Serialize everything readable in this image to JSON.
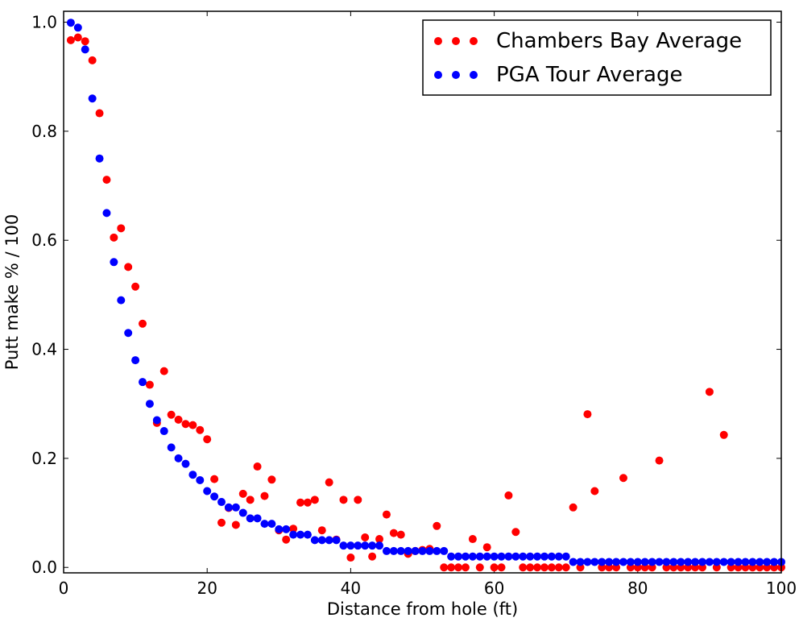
{
  "chart_data": {
    "type": "scatter",
    "xlabel": "Distance from hole (ft)",
    "ylabel": "Putt make % / 100",
    "xlim": [
      0,
      100
    ],
    "ylim": [
      -0.01,
      1.02
    ],
    "xticks": [
      0,
      20,
      40,
      60,
      80,
      100
    ],
    "xtick_labels": [
      "0",
      "20",
      "40",
      "60",
      "80",
      "100"
    ],
    "yticks": [
      0.0,
      0.2,
      0.4,
      0.6,
      0.8,
      1.0
    ],
    "ytick_labels": [
      "0.0",
      "0.2",
      "0.4",
      "0.6",
      "0.8",
      "1.0"
    ],
    "grid": false,
    "legend_position": "top-right",
    "series": [
      {
        "name": "Chambers Bay Average",
        "color": "#ff0000",
        "points": [
          [
            1,
            0.967
          ],
          [
            2,
            0.972
          ],
          [
            3,
            0.965
          ],
          [
            4,
            0.93
          ],
          [
            5,
            0.833
          ],
          [
            6,
            0.711
          ],
          [
            7,
            0.605
          ],
          [
            8,
            0.622
          ],
          [
            9,
            0.551
          ],
          [
            10,
            0.515
          ],
          [
            11,
            0.447
          ],
          [
            12,
            0.335
          ],
          [
            13,
            0.265
          ],
          [
            14,
            0.36
          ],
          [
            15,
            0.28
          ],
          [
            16,
            0.271
          ],
          [
            17,
            0.263
          ],
          [
            18,
            0.261
          ],
          [
            19,
            0.252
          ],
          [
            20,
            0.235
          ],
          [
            21,
            0.162
          ],
          [
            22,
            0.082
          ],
          [
            23,
            0.109
          ],
          [
            24,
            0.078
          ],
          [
            25,
            0.135
          ],
          [
            26,
            0.124
          ],
          [
            27,
            0.185
          ],
          [
            28,
            0.131
          ],
          [
            29,
            0.161
          ],
          [
            30,
            0.068
          ],
          [
            31,
            0.051
          ],
          [
            32,
            0.071
          ],
          [
            33,
            0.119
          ],
          [
            34,
            0.119
          ],
          [
            35,
            0.124
          ],
          [
            36,
            0.068
          ],
          [
            37,
            0.156
          ],
          [
            38,
            0.051
          ],
          [
            39,
            0.124
          ],
          [
            40,
            0.018
          ],
          [
            41,
            0.124
          ],
          [
            42,
            0.055
          ],
          [
            43,
            0.02
          ],
          [
            44,
            0.052
          ],
          [
            45,
            0.097
          ],
          [
            46,
            0.063
          ],
          [
            47,
            0.06
          ],
          [
            48,
            0.025
          ],
          [
            49,
            0.03
          ],
          [
            50,
            0.032
          ],
          [
            51,
            0.034
          ],
          [
            52,
            0.076
          ],
          [
            53,
            0.0
          ],
          [
            54,
            0.0
          ],
          [
            55,
            0.0
          ],
          [
            56,
            0.0
          ],
          [
            57,
            0.052
          ],
          [
            58,
            0.0
          ],
          [
            59,
            0.037
          ],
          [
            60,
            0.0
          ],
          [
            61,
            0.0
          ],
          [
            62,
            0.132
          ],
          [
            63,
            0.065
          ],
          [
            64,
            0.0
          ],
          [
            65,
            0.0
          ],
          [
            66,
            0.0
          ],
          [
            67,
            0.0
          ],
          [
            68,
            0.0
          ],
          [
            69,
            0.0
          ],
          [
            70,
            0.0
          ],
          [
            71,
            0.11
          ],
          [
            72,
            0.0
          ],
          [
            73,
            0.281
          ],
          [
            74,
            0.14
          ],
          [
            75,
            0.0
          ],
          [
            76,
            0.0
          ],
          [
            77,
            0.0
          ],
          [
            78,
            0.164
          ],
          [
            79,
            0.0
          ],
          [
            80,
            0.0
          ],
          [
            81,
            0.0
          ],
          [
            82,
            0.0
          ],
          [
            83,
            0.196
          ],
          [
            84,
            0.0
          ],
          [
            85,
            0.0
          ],
          [
            86,
            0.0
          ],
          [
            87,
            0.0
          ],
          [
            88,
            0.0
          ],
          [
            89,
            0.0
          ],
          [
            90,
            0.322
          ],
          [
            91,
            0.0
          ],
          [
            92,
            0.243
          ],
          [
            93,
            0.0
          ],
          [
            94,
            0.0
          ],
          [
            95,
            0.0
          ],
          [
            96,
            0.0
          ],
          [
            97,
            0.0
          ],
          [
            98,
            0.0
          ],
          [
            99,
            0.0
          ],
          [
            100,
            0.0
          ]
        ]
      },
      {
        "name": "PGA Tour Average",
        "color": "#0000ff",
        "points": [
          [
            1,
            0.999
          ],
          [
            2,
            0.99
          ],
          [
            3,
            0.95
          ],
          [
            4,
            0.86
          ],
          [
            5,
            0.75
          ],
          [
            6,
            0.65
          ],
          [
            7,
            0.56
          ],
          [
            8,
            0.49
          ],
          [
            9,
            0.43
          ],
          [
            10,
            0.38
          ],
          [
            11,
            0.34
          ],
          [
            12,
            0.3
          ],
          [
            13,
            0.27
          ],
          [
            14,
            0.25
          ],
          [
            15,
            0.22
          ],
          [
            16,
            0.2
          ],
          [
            17,
            0.19
          ],
          [
            18,
            0.17
          ],
          [
            19,
            0.16
          ],
          [
            20,
            0.14
          ],
          [
            21,
            0.13
          ],
          [
            22,
            0.12
          ],
          [
            23,
            0.11
          ],
          [
            24,
            0.11
          ],
          [
            25,
            0.1
          ],
          [
            26,
            0.09
          ],
          [
            27,
            0.09
          ],
          [
            28,
            0.08
          ],
          [
            29,
            0.08
          ],
          [
            30,
            0.07
          ],
          [
            31,
            0.07
          ],
          [
            32,
            0.06
          ],
          [
            33,
            0.06
          ],
          [
            34,
            0.06
          ],
          [
            35,
            0.05
          ],
          [
            36,
            0.05
          ],
          [
            37,
            0.05
          ],
          [
            38,
            0.05
          ],
          [
            39,
            0.04
          ],
          [
            40,
            0.04
          ],
          [
            41,
            0.04
          ],
          [
            42,
            0.04
          ],
          [
            43,
            0.04
          ],
          [
            44,
            0.04
          ],
          [
            45,
            0.03
          ],
          [
            46,
            0.03
          ],
          [
            47,
            0.03
          ],
          [
            48,
            0.03
          ],
          [
            49,
            0.03
          ],
          [
            50,
            0.03
          ],
          [
            51,
            0.03
          ],
          [
            52,
            0.03
          ],
          [
            53,
            0.03
          ],
          [
            54,
            0.02
          ],
          [
            55,
            0.02
          ],
          [
            56,
            0.02
          ],
          [
            57,
            0.02
          ],
          [
            58,
            0.02
          ],
          [
            59,
            0.02
          ],
          [
            60,
            0.02
          ],
          [
            61,
            0.02
          ],
          [
            62,
            0.02
          ],
          [
            63,
            0.02
          ],
          [
            64,
            0.02
          ],
          [
            65,
            0.02
          ],
          [
            66,
            0.02
          ],
          [
            67,
            0.02
          ],
          [
            68,
            0.02
          ],
          [
            69,
            0.02
          ],
          [
            70,
            0.02
          ],
          [
            71,
            0.01
          ],
          [
            72,
            0.01
          ],
          [
            73,
            0.01
          ],
          [
            74,
            0.01
          ],
          [
            75,
            0.01
          ],
          [
            76,
            0.01
          ],
          [
            77,
            0.01
          ],
          [
            78,
            0.01
          ],
          [
            79,
            0.01
          ],
          [
            80,
            0.01
          ],
          [
            81,
            0.01
          ],
          [
            82,
            0.01
          ],
          [
            83,
            0.01
          ],
          [
            84,
            0.01
          ],
          [
            85,
            0.01
          ],
          [
            86,
            0.01
          ],
          [
            87,
            0.01
          ],
          [
            88,
            0.01
          ],
          [
            89,
            0.01
          ],
          [
            90,
            0.01
          ],
          [
            91,
            0.01
          ],
          [
            92,
            0.01
          ],
          [
            93,
            0.01
          ],
          [
            94,
            0.01
          ],
          [
            95,
            0.01
          ],
          [
            96,
            0.01
          ],
          [
            97,
            0.01
          ],
          [
            98,
            0.01
          ],
          [
            99,
            0.01
          ],
          [
            100,
            0.01
          ]
        ]
      }
    ]
  }
}
